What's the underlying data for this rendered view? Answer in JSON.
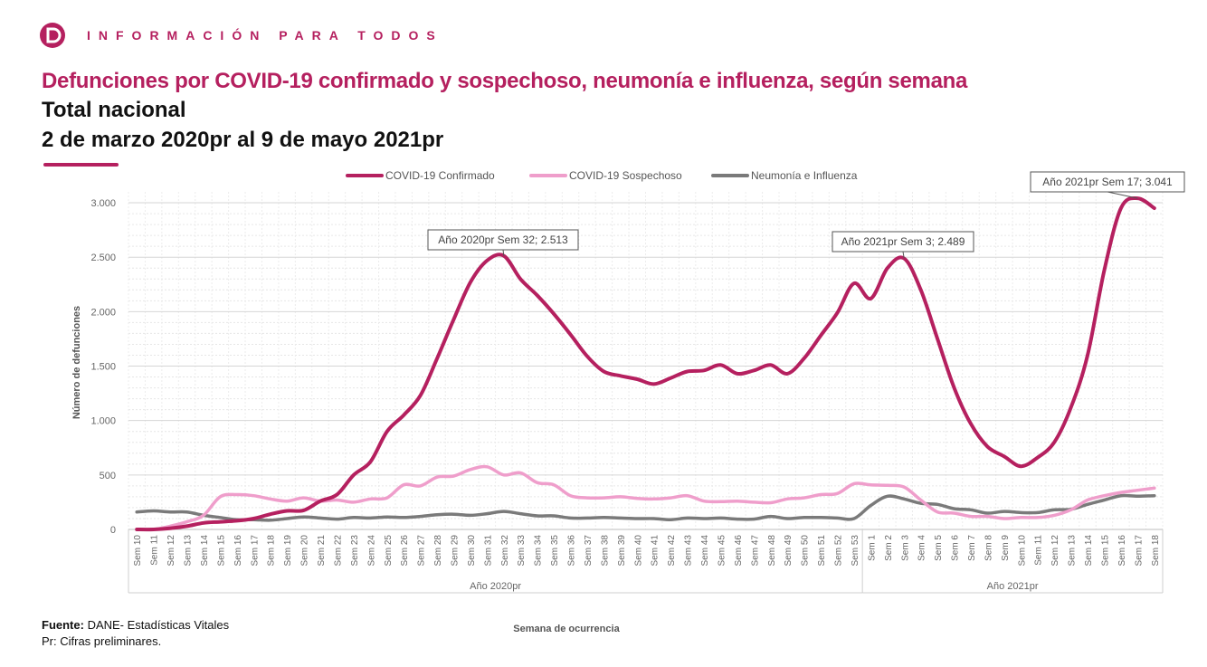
{
  "header": {
    "brand_text": "INFORMACIÓN PARA TODOS",
    "title": "Defunciones por COVID-19 confirmado y sospechoso, neumonía e influenza, según semana",
    "subtitle1": "Total nacional",
    "subtitle2": "2 de marzo 2020pr al 9 de mayo 2021pr"
  },
  "footer": {
    "source_label": "Fuente:",
    "source_text": " DANE- Estadísticas Vitales",
    "note": "Pr: Cifras preliminares."
  },
  "colors": {
    "brand": "#b5205f",
    "confirmado": "#b5205f",
    "sospechoso": "#ef9ecb",
    "neumonia": "#7a7a7a"
  },
  "chart_data": {
    "type": "line",
    "xlabel": "Semana de ocurrencia",
    "ylabel": "Número de defunciones",
    "ylim": [
      0,
      3100
    ],
    "yticks": [
      0,
      500,
      1000,
      1500,
      2000,
      2500,
      3000
    ],
    "ytick_labels": [
      "0",
      "500",
      "1.000",
      "1.500",
      "2.000",
      "2.500",
      "3.000"
    ],
    "grid": true,
    "legend_position": "top-center",
    "categories": [
      "Sem 10",
      "Sem 11",
      "Sem 12",
      "Sem 13",
      "Sem 14",
      "Sem 15",
      "Sem 16",
      "Sem 17",
      "Sem 18",
      "Sem 19",
      "Sem 20",
      "Sem 21",
      "Sem 22",
      "Sem 23",
      "Sem 24",
      "Sem 25",
      "Sem 26",
      "Sem 27",
      "Sem 28",
      "Sem 29",
      "Sem 30",
      "Sem 31",
      "Sem 32",
      "Sem 33",
      "Sem 34",
      "Sem 35",
      "Sem 36",
      "Sem 37",
      "Sem 38",
      "Sem 39",
      "Sem 40",
      "Sem 41",
      "Sem 42",
      "Sem 43",
      "Sem 44",
      "Sem 45",
      "Sem 46",
      "Sem 47",
      "Sem 48",
      "Sem 49",
      "Sem 50",
      "Sem 51",
      "Sem 52",
      "Sem 53",
      "Sem 1",
      "Sem 2",
      "Sem 3",
      "Sem 4",
      "Sem 5",
      "Sem 6",
      "Sem 7",
      "Sem 8",
      "Sem 9",
      "Sem 10",
      "Sem 11",
      "Sem 12",
      "Sem 13",
      "Sem 14",
      "Sem 15",
      "Sem 16",
      "Sem 17",
      "Sem 18"
    ],
    "groups": [
      {
        "label": "Año 2020pr",
        "start": 0,
        "end": 43
      },
      {
        "label": "Año 2021pr",
        "start": 44,
        "end": 61
      }
    ],
    "series": [
      {
        "name": "COVID-19 Confirmado",
        "values": [
          0,
          0,
          10,
          30,
          60,
          70,
          80,
          100,
          140,
          170,
          175,
          260,
          320,
          500,
          620,
          900,
          1050,
          1230,
          1570,
          1930,
          2270,
          2470,
          2513,
          2300,
          2150,
          1980,
          1790,
          1590,
          1450,
          1410,
          1380,
          1335,
          1390,
          1450,
          1460,
          1510,
          1430,
          1460,
          1510,
          1430,
          1570,
          1780,
          1990,
          2260,
          2120,
          2400,
          2489,
          2200,
          1750,
          1300,
          970,
          760,
          670,
          580,
          660,
          800,
          1120,
          1600,
          2380,
          2950,
          3041,
          2950
        ]
      },
      {
        "name": "COVID-19 Sospechoso",
        "values": [
          0,
          0,
          30,
          70,
          130,
          300,
          320,
          310,
          280,
          260,
          290,
          260,
          270,
          250,
          280,
          290,
          410,
          400,
          480,
          490,
          550,
          575,
          500,
          520,
          430,
          410,
          310,
          290,
          290,
          300,
          285,
          280,
          290,
          310,
          260,
          255,
          260,
          250,
          245,
          280,
          290,
          320,
          330,
          420,
          410,
          405,
          390,
          270,
          160,
          150,
          120,
          120,
          100,
          110,
          110,
          130,
          180,
          270,
          310,
          340,
          360,
          380
        ]
      },
      {
        "name": "Neumonía e Influenza",
        "values": [
          160,
          170,
          160,
          160,
          130,
          110,
          90,
          90,
          85,
          100,
          115,
          105,
          95,
          110,
          105,
          115,
          110,
          120,
          135,
          140,
          130,
          145,
          165,
          145,
          125,
          125,
          105,
          105,
          110,
          105,
          100,
          100,
          90,
          105,
          100,
          105,
          95,
          95,
          120,
          100,
          110,
          110,
          105,
          100,
          220,
          305,
          280,
          240,
          230,
          190,
          180,
          150,
          165,
          155,
          155,
          180,
          185,
          230,
          270,
          310,
          305,
          310
        ]
      }
    ],
    "annotations": [
      {
        "series": 0,
        "index": 22,
        "text": "Año 2020pr Sem 32; 2.513"
      },
      {
        "series": 0,
        "index": 46,
        "text": "Año 2021pr Sem 3; 2.489"
      },
      {
        "series": 0,
        "index": 60,
        "text": "Año 2021pr Sem 17; 3.041"
      }
    ]
  }
}
